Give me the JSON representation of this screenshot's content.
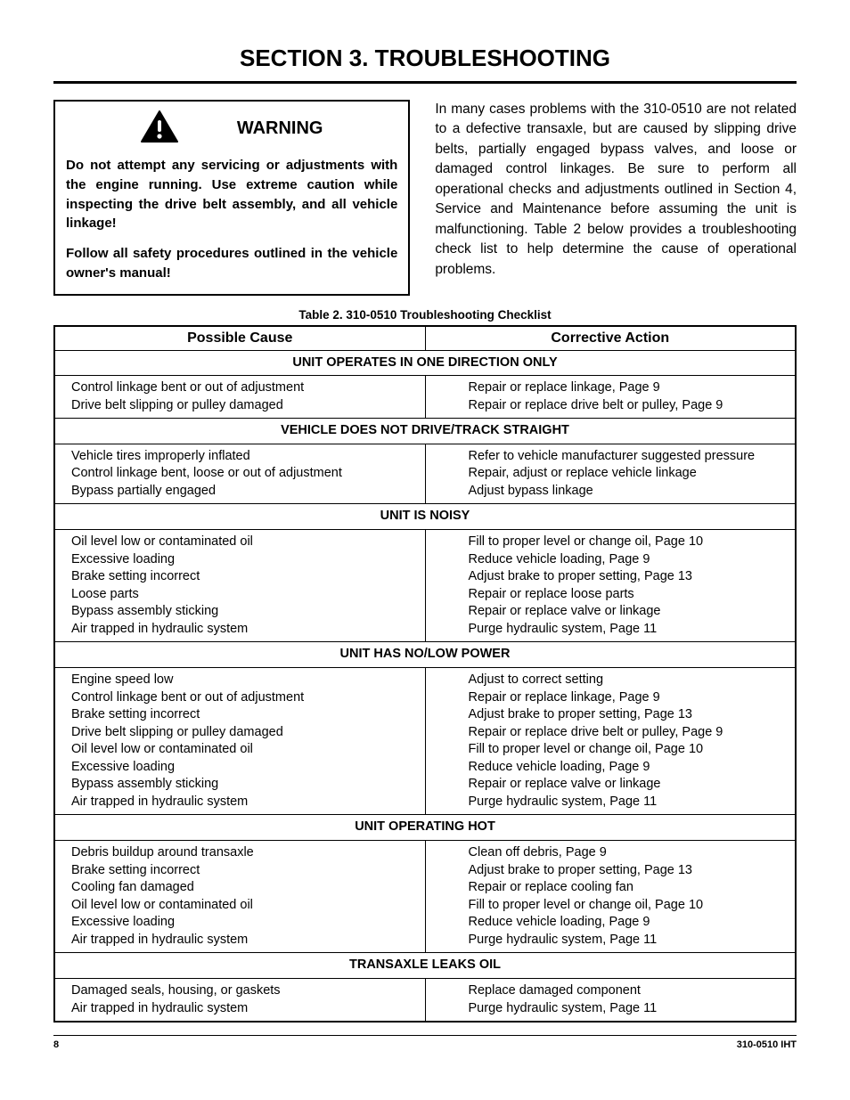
{
  "section_title": "SECTION 3. TROUBLESHOOTING",
  "warning": {
    "title": "WARNING",
    "p1": "Do not attempt any servicing or adjustments with the engine running. Use extreme caution while inspecting the drive belt assembly, and all vehicle linkage!",
    "p2": "Follow all safety procedures outlined in the vehicle owner's manual!"
  },
  "intro": "In many cases problems with the 310-0510 are not related to a defective transaxle, but are caused by slipping drive belts, partially engaged bypass valves, and loose or damaged control linkages. Be sure to perform all operational checks and adjustments outlined in Section 4, Service and Maintenance before assuming the unit is malfunctioning. Table 2 below provides a troubleshooting check list to help determine the cause of operational problems.",
  "table": {
    "caption": "Table 2. 310-0510 Troubleshooting Checklist",
    "headers": {
      "cause": "Possible Cause",
      "action": "Corrective Action"
    },
    "groups": [
      {
        "title": "UNIT OPERATES IN ONE DIRECTION ONLY",
        "cause": "Control linkage bent or out of adjustment\nDrive belt slipping or pulley damaged",
        "action": "Repair or replace linkage, Page 9\nRepair or replace drive belt or pulley, Page 9"
      },
      {
        "title": "VEHICLE DOES NOT DRIVE/TRACK STRAIGHT",
        "cause": "Vehicle tires improperly inflated\nControl linkage bent, loose or out of adjustment\nBypass partially engaged",
        "action": "Refer to vehicle manufacturer suggested pressure\nRepair, adjust or replace vehicle linkage\nAdjust bypass linkage"
      },
      {
        "title": "UNIT IS NOISY",
        "cause": "Oil level low or contaminated oil\nExcessive loading\nBrake setting incorrect\nLoose parts\nBypass assembly sticking\nAir trapped in hydraulic system",
        "action": "Fill to proper level or change oil, Page 10\nReduce vehicle loading, Page 9\nAdjust brake to proper setting, Page 13\nRepair or replace loose parts\nRepair or replace valve or linkage\nPurge hydraulic system, Page 11"
      },
      {
        "title": "UNIT HAS NO/LOW POWER",
        "cause": "Engine speed low\nControl linkage bent or out of adjustment\nBrake setting incorrect\nDrive belt slipping or pulley damaged\nOil level low or contaminated oil\nExcessive loading\nBypass assembly sticking\nAir trapped in hydraulic system",
        "action": "Adjust to correct setting\nRepair or replace linkage, Page 9\nAdjust brake to proper setting, Page 13\nRepair or replace drive belt or pulley, Page 9\nFill to proper level or change oil, Page 10\nReduce vehicle loading, Page 9\nRepair or replace valve or linkage\nPurge hydraulic system, Page 11"
      },
      {
        "title": "UNIT OPERATING HOT",
        "cause": "Debris buildup around transaxle\nBrake setting incorrect\nCooling fan damaged\nOil level low or contaminated oil\nExcessive loading\nAir trapped in hydraulic system",
        "action": "Clean off debris, Page 9\nAdjust brake to proper setting, Page 13\nRepair or replace cooling fan\nFill to proper level or change oil, Page 10\nReduce vehicle loading, Page 9\nPurge hydraulic system, Page 11"
      },
      {
        "title": "TRANSAXLE LEAKS OIL",
        "cause": "Damaged seals, housing, or gaskets\nAir trapped in hydraulic system",
        "action": "Replace damaged component\nPurge hydraulic system, Page 11"
      }
    ]
  },
  "footer": {
    "page": "8",
    "doc": "310-0510 IHT"
  },
  "colors": {
    "text": "#000000",
    "bg": "#ffffff",
    "border": "#000000"
  }
}
